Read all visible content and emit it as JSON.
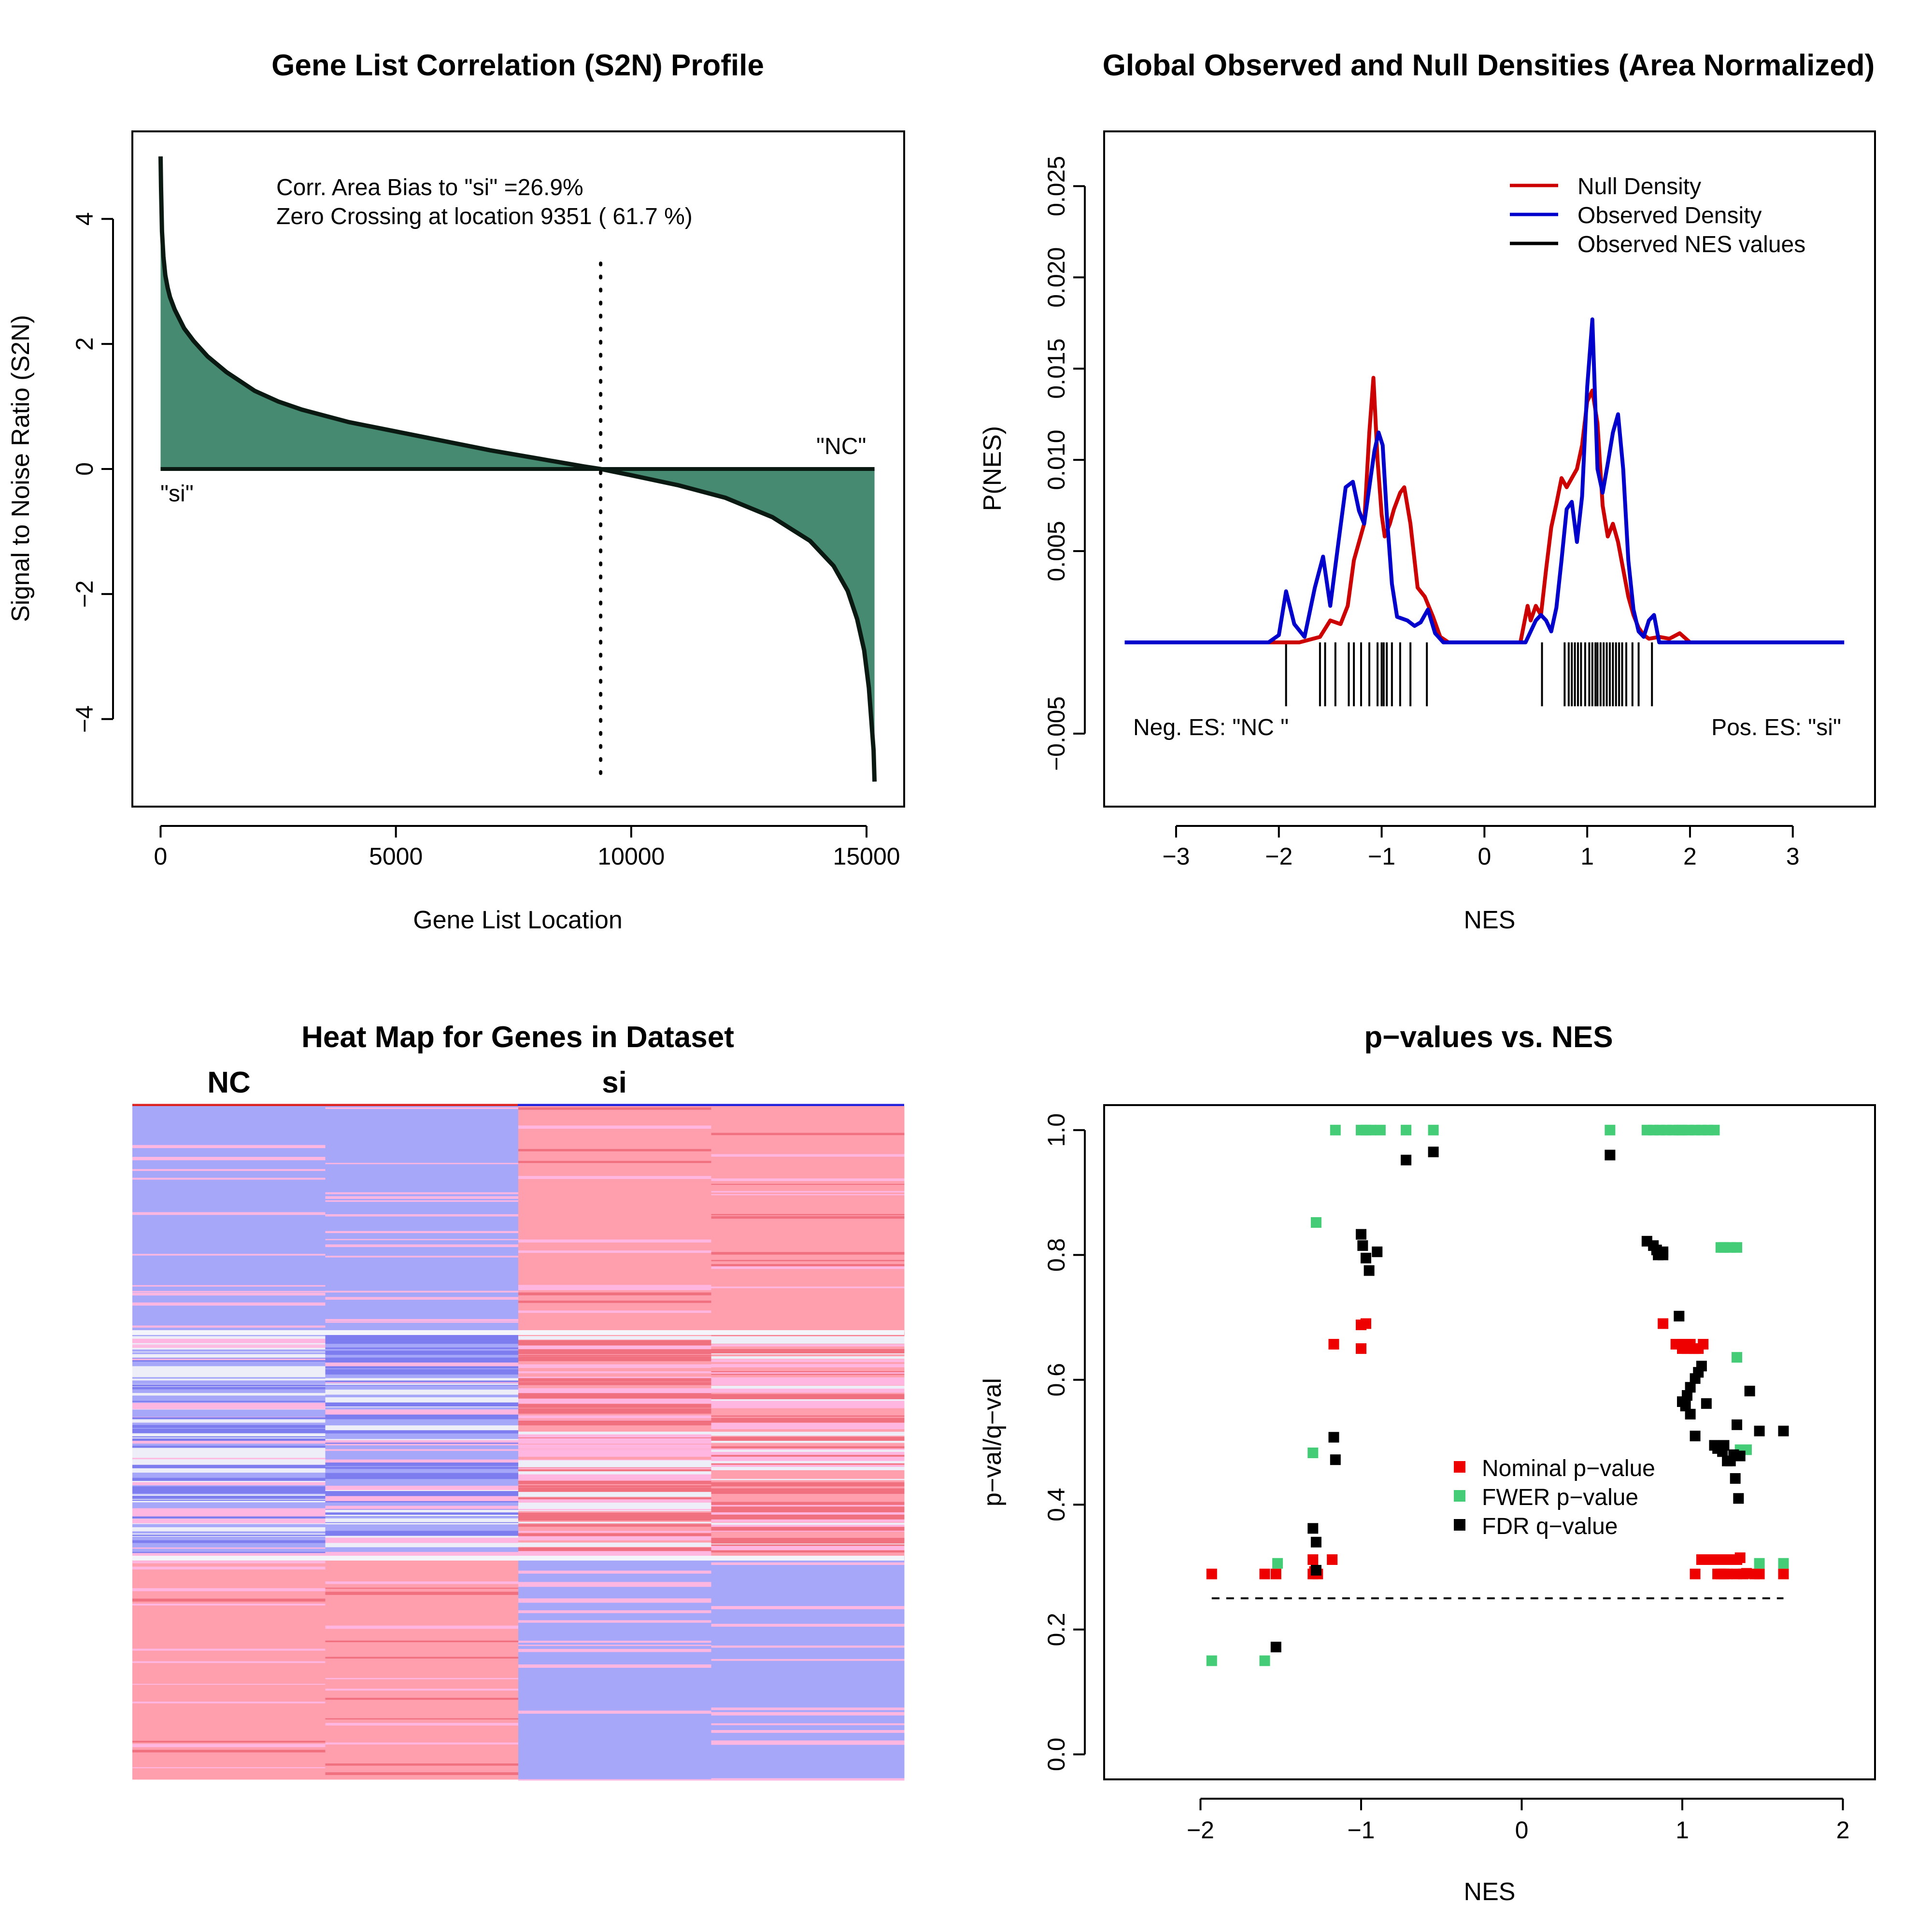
{
  "chart_data": [
    {
      "type": "area",
      "title": "Gene List Correlation (S2N) Profile",
      "xlabel": "Gene List Location",
      "ylabel": "Signal to Noise Ratio (S2N)",
      "xlim": [
        -600,
        15800
      ],
      "ylim": [
        -5.4,
        5.4
      ],
      "xticks": [
        0,
        5000,
        10000,
        15000
      ],
      "yticks": [
        -4,
        -2,
        0,
        2,
        4
      ],
      "annotations": [
        "Corr. Area Bias to \"si\" =26.9%",
        "Zero Crossing at location  9351  ( 61.7  %)"
      ],
      "left_label": "\"si\"",
      "right_label": "\"NC\"",
      "zero_crossing": 9351,
      "fill_color": "#468a72",
      "x": [
        0,
        10,
        30,
        60,
        100,
        150,
        200,
        300,
        400,
        500,
        700,
        1000,
        1400,
        2000,
        2500,
        3000,
        4000,
        5000,
        6000,
        7000,
        8000,
        9000,
        9351,
        10000,
        11000,
        12000,
        13000,
        13800,
        14300,
        14600,
        14800,
        14950,
        15050,
        15100,
        15150,
        15170
      ],
      "values": [
        5.0,
        4.5,
        3.8,
        3.4,
        3.1,
        2.9,
        2.75,
        2.55,
        2.4,
        2.25,
        2.05,
        1.8,
        1.55,
        1.25,
        1.08,
        0.95,
        0.75,
        0.6,
        0.45,
        0.3,
        0.17,
        0.04,
        0.0,
        -0.1,
        -0.26,
        -0.46,
        -0.77,
        -1.15,
        -1.55,
        -1.95,
        -2.4,
        -2.9,
        -3.5,
        -4.0,
        -4.5,
        -5.0
      ]
    },
    {
      "type": "line",
      "title": "Global Observed and Null Densities (Area Normalized)",
      "xlabel": "NES",
      "ylabel": "P(NES)",
      "xlim": [
        -3.7,
        3.8
      ],
      "ylim": [
        -0.009,
        0.028
      ],
      "xticks": [
        -3,
        -2,
        -1,
        0,
        1,
        2,
        3
      ],
      "yticks": [
        -0.005,
        0.005,
        0.01,
        0.015,
        0.02,
        0.025
      ],
      "ytick_labels": [
        "−0.005",
        "0.005",
        "0.010",
        "0.015",
        "0.020",
        "0.025"
      ],
      "xtick_labels": [
        "−3",
        "−2",
        "−1",
        "0",
        "1",
        "2",
        "3"
      ],
      "legend": [
        "Null Density",
        "Observed Density",
        "Observed NES values"
      ],
      "legend_colors": [
        "#cc0000",
        "#0000cc",
        "#000000"
      ],
      "corner_left": "Neg. ES: \"NC \"",
      "corner_right": "Pos. ES: \"si\"",
      "nes_values": [
        -1.93,
        -1.6,
        -1.55,
        -1.45,
        -1.32,
        -1.27,
        -1.2,
        -1.12,
        -1.04,
        -1.0,
        -0.98,
        -0.95,
        -0.9,
        -0.82,
        -0.72,
        -0.56,
        0.56,
        0.78,
        0.82,
        0.85,
        0.88,
        0.91,
        0.94,
        0.98,
        1.02,
        1.05,
        1.08,
        1.1,
        1.13,
        1.16,
        1.19,
        1.22,
        1.25,
        1.28,
        1.31,
        1.34,
        1.38,
        1.44,
        1.5,
        1.63
      ],
      "series": [
        {
          "name": "Null Density",
          "color": "#cc0000",
          "x": [
            -3.5,
            -2.1,
            -1.8,
            -1.6,
            -1.5,
            -1.4,
            -1.33,
            -1.27,
            -1.22,
            -1.17,
            -1.12,
            -1.08,
            -1.04,
            -1.0,
            -0.97,
            -0.92,
            -0.88,
            -0.82,
            -0.78,
            -0.72,
            -0.65,
            -0.58,
            -0.5,
            -0.43,
            -0.35,
            0.35,
            0.42,
            0.45,
            0.5,
            0.55,
            0.6,
            0.65,
            0.7,
            0.75,
            0.8,
            0.85,
            0.9,
            0.95,
            1.0,
            1.05,
            1.1,
            1.15,
            1.2,
            1.25,
            1.3,
            1.35,
            1.4,
            1.45,
            1.5,
            1.55,
            1.6,
            1.7,
            1.8,
            1.9,
            2.0,
            3.5
          ],
          "values": [
            0,
            0,
            0,
            0.0003,
            0.0012,
            0.001,
            0.002,
            0.0045,
            0.0055,
            0.0065,
            0.0115,
            0.0145,
            0.01,
            0.007,
            0.0058,
            0.0065,
            0.0073,
            0.0082,
            0.0085,
            0.0065,
            0.003,
            0.0025,
            0.0014,
            0.0003,
            0,
            0,
            0.002,
            0.0012,
            0.002,
            0.0015,
            0.004,
            0.0063,
            0.0076,
            0.009,
            0.0085,
            0.009,
            0.0095,
            0.0108,
            0.0132,
            0.0138,
            0.012,
            0.0075,
            0.0058,
            0.0065,
            0.0055,
            0.004,
            0.0025,
            0.0015,
            0.0008,
            0.0004,
            0.0002,
            0.0003,
            0.0002,
            0.0005,
            0,
            0
          ]
        },
        {
          "name": "Observed Density",
          "color": "#0000cc",
          "x": [
            -3.5,
            -2.1,
            -2.0,
            -1.93,
            -1.85,
            -1.75,
            -1.65,
            -1.57,
            -1.5,
            -1.42,
            -1.35,
            -1.28,
            -1.22,
            -1.17,
            -1.12,
            -1.07,
            -1.03,
            -0.99,
            -0.95,
            -0.9,
            -0.85,
            -0.8,
            -0.75,
            -0.68,
            -0.62,
            -0.55,
            -0.48,
            -0.4,
            -0.3,
            0.4,
            0.5,
            0.55,
            0.6,
            0.65,
            0.7,
            0.75,
            0.8,
            0.85,
            0.9,
            0.95,
            1.0,
            1.05,
            1.1,
            1.15,
            1.2,
            1.25,
            1.3,
            1.35,
            1.4,
            1.45,
            1.5,
            1.55,
            1.6,
            1.65,
            1.7,
            3.5
          ],
          "values": [
            0,
            0,
            0.0004,
            0.0028,
            0.001,
            0.0003,
            0.003,
            0.0047,
            0.002,
            0.0055,
            0.0085,
            0.0088,
            0.0072,
            0.0065,
            0.0085,
            0.0105,
            0.0115,
            0.0108,
            0.007,
            0.0032,
            0.0014,
            0.0013,
            0.0012,
            0.0009,
            0.0011,
            0.0018,
            0.0005,
            0,
            0,
            0,
            0.0012,
            0.0015,
            0.0012,
            0.0006,
            0.0019,
            0.0045,
            0.0073,
            0.0077,
            0.0055,
            0.008,
            0.014,
            0.0177,
            0.0095,
            0.0082,
            0.0098,
            0.0115,
            0.0125,
            0.0095,
            0.0045,
            0.0018,
            0.0006,
            0.0003,
            0.0012,
            0.0015,
            0,
            0
          ]
        }
      ]
    },
    {
      "type": "heatmap",
      "title": "Heat Map for Genes in Dataset",
      "column_groups": [
        "NC",
        "si"
      ],
      "column_group_colors": [
        "#dd2222",
        "#2222dd"
      ],
      "n_columns": 4,
      "bands": [
        {
          "columns": [
            "blue",
            "blue",
            "red",
            "red"
          ],
          "fraction": 0.335
        },
        {
          "columns": [
            "mixed",
            "blue-mixed",
            "red-mixed",
            "red-mixed"
          ],
          "fraction": 0.335
        },
        {
          "columns": [
            "red",
            "red",
            "blue",
            "blue"
          ],
          "fraction": 0.33
        }
      ],
      "colors": {
        "red": "#ff9fae",
        "blue": "#a7a7f9",
        "white": "#eeeef8",
        "dark_red": "#f07080",
        "dark_blue": "#7d7df0",
        "pink": "#ffb6e0"
      }
    },
    {
      "type": "scatter",
      "title": "p−values vs. NES",
      "xlabel": "NES",
      "ylabel": "p−val/q−val",
      "xlim": [
        -2.6,
        2.2
      ],
      "ylim": [
        -0.04,
        1.04
      ],
      "xticks": [
        -2,
        -1,
        0,
        1,
        2
      ],
      "xtick_labels": [
        "−2",
        "−1",
        "0",
        "1",
        "2"
      ],
      "yticks": [
        0.0,
        0.2,
        0.4,
        0.6,
        0.8,
        1.0
      ],
      "ytick_labels": [
        "0.0",
        "0.2",
        "0.4",
        "0.6",
        "0.8",
        "1.0"
      ],
      "threshold": 0.25,
      "threshold_range": [
        -1.93,
        1.63
      ],
      "legend": [
        "Nominal p−value",
        "FWER p−value",
        "FDR q−value"
      ],
      "series": [
        {
          "name": "Nominal p−value",
          "color": "#ee0000",
          "x": [
            -1.93,
            -1.6,
            -1.53,
            -1.3,
            -1.29,
            -1.3,
            -1.27,
            -1.18,
            -1.17,
            -1.0,
            -1.0,
            -0.97,
            0.88,
            0.96,
            1.0,
            1.05,
            1.08,
            1.1,
            1.13,
            1.0,
            1.03,
            1.07,
            1.02,
            1.22,
            1.25,
            1.28,
            1.31,
            1.34,
            1.4,
            1.45,
            1.08,
            1.12,
            1.16,
            1.2,
            1.24,
            1.28,
            1.32,
            1.36,
            1.22,
            1.26,
            1.3,
            1.34,
            1.38,
            1.48,
            1.63
          ],
          "values": [
            0.289,
            0.289,
            0.289,
            0.289,
            0.293,
            0.312,
            0.289,
            0.312,
            0.657,
            0.65,
            0.688,
            0.69,
            0.69,
            0.657,
            0.65,
            0.657,
            0.65,
            0.65,
            0.657,
            0.657,
            0.65,
            0.65,
            0.657,
            0.312,
            0.312,
            0.312,
            0.312,
            0.312,
            0.29,
            0.289,
            0.289,
            0.312,
            0.312,
            0.312,
            0.289,
            0.289,
            0.312,
            0.315,
            0.289,
            0.289,
            0.312,
            0.289,
            0.289,
            0.289,
            0.289
          ]
        },
        {
          "name": "FWER p−value",
          "color": "#44cc77",
          "x": [
            -1.93,
            -1.6,
            -1.52,
            -1.3,
            -1.28,
            -1.16,
            -1.0,
            -0.97,
            -0.94,
            -0.88,
            -0.72,
            -0.55,
            0.55,
            0.78,
            0.82,
            0.86,
            0.9,
            0.94,
            0.98,
            1.0,
            1.04,
            1.08,
            1.12,
            1.16,
            1.2,
            1.24,
            1.26,
            1.3,
            1.34,
            1.34,
            1.36,
            1.4,
            1.48,
            1.63
          ],
          "values": [
            0.15,
            0.15,
            0.306,
            0.483,
            0.852,
            1.0,
            1.0,
            1.0,
            1.0,
            1.0,
            1.0,
            1.0,
            1.0,
            1.0,
            1.0,
            1.0,
            1.0,
            1.0,
            1.0,
            1.0,
            1.0,
            1.0,
            1.0,
            1.0,
            1.0,
            0.812,
            0.812,
            0.812,
            0.812,
            0.636,
            0.488,
            0.488,
            0.306,
            0.306
          ]
        },
        {
          "name": "FDR q−value",
          "color": "#000000",
          "x": [
            -1.53,
            -1.3,
            -1.28,
            -1.28,
            -1.17,
            -1.16,
            -1.0,
            -0.99,
            -0.97,
            -0.95,
            -0.9,
            -0.72,
            -0.55,
            0.55,
            0.78,
            0.82,
            0.85,
            0.88,
            0.98,
            1.0,
            1.03,
            1.05,
            1.08,
            1.1,
            1.12,
            1.15,
            1.2,
            1.22,
            1.25,
            1.28,
            1.3,
            1.33,
            1.35,
            1.42,
            1.48,
            1.63,
            1.34,
            1.05,
            1.02,
            1.08,
            1.36,
            1.32,
            1.26,
            0.84,
            0.88
          ],
          "values": [
            0.172,
            0.362,
            0.34,
            0.295,
            0.508,
            0.472,
            0.833,
            0.815,
            0.795,
            0.775,
            0.805,
            0.952,
            0.965,
            0.96,
            0.822,
            0.815,
            0.8,
            0.8,
            0.702,
            0.565,
            0.575,
            0.588,
            0.602,
            0.612,
            0.622,
            0.562,
            0.495,
            0.49,
            0.485,
            0.47,
            0.47,
            0.442,
            0.41,
            0.582,
            0.518,
            0.518,
            0.528,
            0.545,
            0.558,
            0.51,
            0.478,
            0.48,
            0.495,
            0.808,
            0.805
          ]
        }
      ]
    }
  ]
}
